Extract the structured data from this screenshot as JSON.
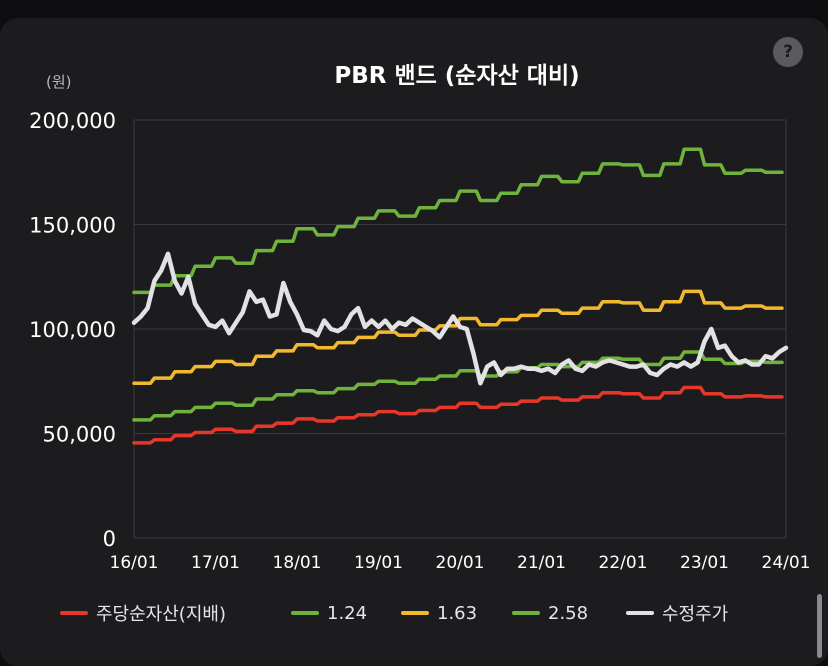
{
  "header": {
    "help_icon": "?",
    "unit": "(원)"
  },
  "chart_data": {
    "type": "line",
    "title": "PBR 밴드 (순자산 대비)",
    "ylim": [
      0,
      200000
    ],
    "yticks": [
      0,
      50000,
      100000,
      150000,
      200000
    ],
    "ytick_labels": [
      "0",
      "50,000",
      "100,000",
      "150,000",
      "200,000"
    ],
    "x_range": [
      "2016-01",
      "2024-01"
    ],
    "xticks": [
      "2016-01",
      "2017-01",
      "2018-01",
      "2019-01",
      "2020-01",
      "2021-01",
      "2022-01",
      "2023-01",
      "2024-01"
    ],
    "xtick_labels": [
      "16/01",
      "17/01",
      "18/01",
      "19/01",
      "20/01",
      "21/01",
      "22/01",
      "23/01",
      "24/01"
    ],
    "grid": true,
    "legend_position": "bottom",
    "series": [
      {
        "name": "주당순자산(지배)",
        "color": "#e8372a",
        "x": [
          "2016-01",
          "2016-04",
          "2016-07",
          "2016-10",
          "2017-01",
          "2017-04",
          "2017-07",
          "2017-10",
          "2018-01",
          "2018-04",
          "2018-07",
          "2018-10",
          "2019-01",
          "2019-04",
          "2019-07",
          "2019-10",
          "2020-01",
          "2020-04",
          "2020-07",
          "2020-10",
          "2021-01",
          "2021-04",
          "2021-07",
          "2021-10",
          "2022-01",
          "2022-04",
          "2022-07",
          "2022-10",
          "2023-01",
          "2023-04",
          "2023-07",
          "2023-10"
        ],
        "y": [
          45500,
          47000,
          49000,
          50500,
          52000,
          51000,
          53500,
          55000,
          57000,
          56000,
          57500,
          59000,
          60500,
          59500,
          61000,
          62500,
          64500,
          62500,
          64000,
          65500,
          67000,
          66000,
          67500,
          69500,
          69000,
          67000,
          69500,
          72000,
          69000,
          67500,
          68000,
          67500
        ]
      },
      {
        "name": "1.24",
        "color": "#6fb33d",
        "x": [
          "2016-01",
          "2016-04",
          "2016-07",
          "2016-10",
          "2017-01",
          "2017-04",
          "2017-07",
          "2017-10",
          "2018-01",
          "2018-04",
          "2018-07",
          "2018-10",
          "2019-01",
          "2019-04",
          "2019-07",
          "2019-10",
          "2020-01",
          "2020-04",
          "2020-07",
          "2020-10",
          "2021-01",
          "2021-04",
          "2021-07",
          "2021-10",
          "2022-01",
          "2022-04",
          "2022-07",
          "2022-10",
          "2023-01",
          "2023-04",
          "2023-07",
          "2023-10"
        ],
        "y": [
          56500,
          58500,
          60500,
          62500,
          64500,
          63500,
          66500,
          68500,
          70500,
          69500,
          71500,
          73500,
          75000,
          74000,
          76000,
          77500,
          80000,
          77500,
          79500,
          81500,
          83000,
          82000,
          84000,
          86000,
          85500,
          83000,
          86000,
          89000,
          85500,
          83500,
          84500,
          84000
        ]
      },
      {
        "name": "1.63",
        "color": "#f2b92f",
        "x": [
          "2016-01",
          "2016-04",
          "2016-07",
          "2016-10",
          "2017-01",
          "2017-04",
          "2017-07",
          "2017-10",
          "2018-01",
          "2018-04",
          "2018-07",
          "2018-10",
          "2019-01",
          "2019-04",
          "2019-07",
          "2019-10",
          "2020-01",
          "2020-04",
          "2020-07",
          "2020-10",
          "2021-01",
          "2021-04",
          "2021-07",
          "2021-10",
          "2022-01",
          "2022-04",
          "2022-07",
          "2022-10",
          "2023-01",
          "2023-04",
          "2023-07",
          "2023-10"
        ],
        "y": [
          74000,
          76500,
          79500,
          82000,
          84500,
          83000,
          87000,
          89500,
          92500,
          91000,
          93500,
          96000,
          98500,
          97000,
          99500,
          101500,
          105000,
          102000,
          104500,
          106500,
          109000,
          107500,
          110000,
          113000,
          112500,
          109000,
          113000,
          118000,
          112500,
          110000,
          111000,
          110000
        ]
      },
      {
        "name": "2.58",
        "color": "#6fb33d",
        "x": [
          "2016-01",
          "2016-04",
          "2016-07",
          "2016-10",
          "2017-01",
          "2017-04",
          "2017-07",
          "2017-10",
          "2018-01",
          "2018-04",
          "2018-07",
          "2018-10",
          "2019-01",
          "2019-04",
          "2019-07",
          "2019-10",
          "2020-01",
          "2020-04",
          "2020-07",
          "2020-10",
          "2021-01",
          "2021-04",
          "2021-07",
          "2021-10",
          "2022-01",
          "2022-04",
          "2022-07",
          "2022-10",
          "2023-01",
          "2023-04",
          "2023-07",
          "2023-10"
        ],
        "y": [
          117500,
          121000,
          125500,
          130000,
          134000,
          131500,
          137500,
          142000,
          148000,
          145000,
          149000,
          153000,
          156500,
          154000,
          158000,
          161500,
          166000,
          161500,
          165000,
          169000,
          173000,
          170500,
          174500,
          179000,
          178500,
          173500,
          179000,
          186000,
          178500,
          174500,
          176000,
          175000
        ]
      },
      {
        "name": "수정주가",
        "color": "#e2e2e4",
        "x": [
          "2016-01",
          "2016-02",
          "2016-03",
          "2016-04",
          "2016-05",
          "2016-06",
          "2016-07",
          "2016-08",
          "2016-09",
          "2016-10",
          "2016-11",
          "2016-12",
          "2017-01",
          "2017-02",
          "2017-03",
          "2017-04",
          "2017-05",
          "2017-06",
          "2017-07",
          "2017-08",
          "2017-09",
          "2017-10",
          "2017-11",
          "2017-12",
          "2018-01",
          "2018-02",
          "2018-03",
          "2018-04",
          "2018-05",
          "2018-06",
          "2018-07",
          "2018-08",
          "2018-09",
          "2018-10",
          "2018-11",
          "2018-12",
          "2019-01",
          "2019-02",
          "2019-03",
          "2019-04",
          "2019-05",
          "2019-06",
          "2019-07",
          "2019-08",
          "2019-09",
          "2019-10",
          "2019-11",
          "2019-12",
          "2020-01",
          "2020-02",
          "2020-03",
          "2020-04",
          "2020-05",
          "2020-06",
          "2020-07",
          "2020-08",
          "2020-09",
          "2020-10",
          "2020-11",
          "2020-12",
          "2021-01",
          "2021-02",
          "2021-03",
          "2021-04",
          "2021-05",
          "2021-06",
          "2021-07",
          "2021-08",
          "2021-09",
          "2021-10",
          "2021-11",
          "2021-12",
          "2022-01",
          "2022-02",
          "2022-03",
          "2022-04",
          "2022-05",
          "2022-06",
          "2022-07",
          "2022-08",
          "2022-09",
          "2022-10",
          "2022-11",
          "2022-12",
          "2023-01",
          "2023-02",
          "2023-03",
          "2023-04",
          "2023-05",
          "2023-06",
          "2023-07",
          "2023-08",
          "2023-09",
          "2023-10",
          "2023-11",
          "2023-12",
          "2024-01"
        ],
        "y": [
          103000,
          106000,
          110000,
          123000,
          128000,
          136000,
          123000,
          117000,
          125000,
          112000,
          107000,
          102000,
          101000,
          104000,
          98000,
          103000,
          108000,
          118000,
          113000,
          114000,
          106000,
          107000,
          122000,
          113000,
          107000,
          99500,
          99000,
          97000,
          104000,
          100000,
          99000,
          101000,
          107000,
          110000,
          101000,
          104000,
          101000,
          104000,
          100000,
          103000,
          102000,
          105000,
          103000,
          101000,
          99000,
          96000,
          101000,
          106000,
          101000,
          100000,
          88000,
          74000,
          82000,
          84000,
          78000,
          81000,
          81000,
          82000,
          81000,
          81000,
          80000,
          81000,
          79000,
          83000,
          85000,
          81000,
          80000,
          83000,
          82000,
          84000,
          85000,
          84000,
          83000,
          82000,
          82000,
          83000,
          79000,
          78000,
          81000,
          83000,
          82000,
          84000,
          82000,
          84000,
          94000,
          100000,
          91000,
          92000,
          87000,
          84000,
          85000,
          83000,
          83000,
          87000,
          86000,
          89000,
          91000
        ]
      }
    ]
  }
}
